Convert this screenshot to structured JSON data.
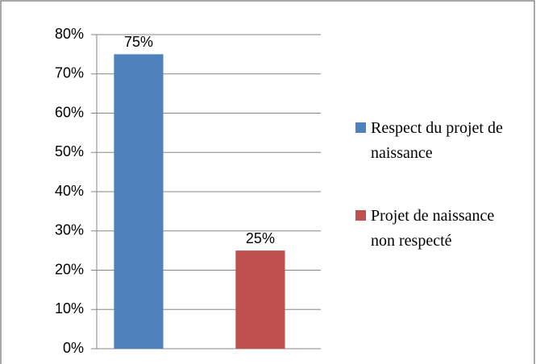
{
  "chart_data": {
    "type": "bar",
    "categories": [
      null
    ],
    "series": [
      {
        "name": "Respect du projet de naissance",
        "color": "#4f81bd",
        "values": [
          75
        ],
        "value_labels": [
          "75%"
        ]
      },
      {
        "name": "Projet de naissance non respecté",
        "color": "#c0504d",
        "values": [
          25
        ],
        "value_labels": [
          "25%"
        ]
      }
    ],
    "ylim": [
      0,
      80
    ],
    "yticks": [
      {
        "value": 0,
        "label": "0%"
      },
      {
        "value": 10,
        "label": "10%"
      },
      {
        "value": 20,
        "label": "20%"
      },
      {
        "value": 30,
        "label": "30%"
      },
      {
        "value": 40,
        "label": "40%"
      },
      {
        "value": 50,
        "label": "50%"
      },
      {
        "value": 60,
        "label": "60%"
      },
      {
        "value": 70,
        "label": "70%"
      },
      {
        "value": 80,
        "label": "80%"
      }
    ],
    "grid": true,
    "legend": "right"
  }
}
